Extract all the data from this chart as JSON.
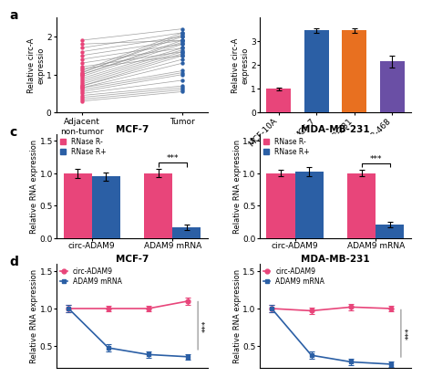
{
  "panel_a": {
    "adjacent_values": [
      0.3,
      0.4,
      0.45,
      0.5,
      0.55,
      0.6,
      0.65,
      0.65,
      0.7,
      0.7,
      0.75,
      0.8,
      0.85,
      0.9,
      0.95,
      1.0,
      1.0,
      1.05,
      1.05,
      1.1,
      1.15,
      1.2,
      1.3,
      1.4,
      1.5,
      1.6,
      1.7,
      1.8,
      1.9,
      0.35
    ],
    "tumor_values": [
      0.55,
      0.65,
      0.7,
      0.85,
      1.0,
      1.05,
      1.1,
      1.3,
      1.4,
      1.5,
      1.55,
      1.6,
      1.65,
      1.7,
      1.8,
      1.85,
      1.9,
      2.0,
      2.05,
      2.1,
      1.5,
      1.6,
      1.7,
      1.8,
      1.9,
      2.0,
      2.1,
      1.9,
      2.2,
      0.6
    ],
    "xlabel_left": "Adjacent\nnon-tumor",
    "xlabel_right": "Tumor",
    "ylabel": "Relative circ-A\nexpressio",
    "ylim": [
      0,
      2.5
    ],
    "yticks": [
      0,
      1,
      2
    ],
    "dot_color_left": "#E8457A",
    "dot_color_right": "#2B5FA5",
    "line_color": "#888888"
  },
  "panel_b": {
    "categories": [
      "MCF-10A",
      "MCF-7",
      "MDA-MB-231",
      "MDA-MB-468"
    ],
    "values": [
      1.0,
      3.45,
      3.45,
      2.15
    ],
    "errors": [
      0.05,
      0.1,
      0.1,
      0.25
    ],
    "colors": [
      "#E8457A",
      "#2B5FA5",
      "#E87020",
      "#6A4FA5"
    ],
    "ylabel": "Relative circ-A\nexpressio",
    "ylim": [
      0,
      4.0
    ],
    "yticks": [
      0,
      1,
      2,
      3
    ]
  },
  "panel_c_mcf7": {
    "title": "MCF-7",
    "groups": [
      "circ-ADAM9",
      "ADAM9 mRNA"
    ],
    "rnase_minus": [
      1.0,
      1.0
    ],
    "rnase_plus": [
      0.95,
      0.17
    ],
    "rnase_minus_err": [
      0.07,
      0.06
    ],
    "rnase_plus_err": [
      0.06,
      0.04
    ],
    "color_minus": "#E8457A",
    "color_plus": "#2B5FA5",
    "ylabel": "Relative RNA expression",
    "ylim": [
      0,
      1.6
    ],
    "yticks": [
      0.0,
      0.5,
      1.0,
      1.5
    ],
    "significance": "***"
  },
  "panel_c_mda": {
    "title": "MDA-MB-231",
    "groups": [
      "circ-ADAM9",
      "ADAM9 mRNA"
    ],
    "rnase_minus": [
      1.0,
      1.0
    ],
    "rnase_plus": [
      1.03,
      0.21
    ],
    "rnase_minus_err": [
      0.05,
      0.05
    ],
    "rnase_plus_err": [
      0.07,
      0.04
    ],
    "color_minus": "#E8457A",
    "color_plus": "#2B5FA5",
    "ylabel": "Relative RNA expression",
    "ylim": [
      0,
      1.6
    ],
    "yticks": [
      0.0,
      0.5,
      1.0,
      1.5
    ],
    "significance": "***"
  },
  "panel_d_mcf7": {
    "title": "MCF-7",
    "xvalues": [
      0,
      1,
      2,
      3
    ],
    "circ_values": [
      1.0,
      1.0,
      1.0,
      1.1
    ],
    "mrna_values": [
      1.0,
      0.47,
      0.38,
      0.35
    ],
    "circ_err": [
      0.05,
      0.04,
      0.04,
      0.05
    ],
    "mrna_err": [
      0.05,
      0.05,
      0.04,
      0.04
    ],
    "circ_color": "#E8457A",
    "mrna_color": "#2B5FA5",
    "ylabel": "Relative RNA expression",
    "ylim": [
      0.2,
      1.6
    ],
    "yticks": [
      0.5,
      1.0,
      1.5
    ],
    "significance": "***"
  },
  "panel_d_mda": {
    "title": "MDA-MB-231",
    "xvalues": [
      0,
      1,
      2,
      3
    ],
    "circ_values": [
      1.0,
      0.97,
      1.02,
      1.0
    ],
    "mrna_values": [
      1.0,
      0.37,
      0.28,
      0.25
    ],
    "circ_err": [
      0.05,
      0.04,
      0.04,
      0.04
    ],
    "mrna_err": [
      0.05,
      0.05,
      0.04,
      0.04
    ],
    "circ_color": "#E8457A",
    "mrna_color": "#2B5FA5",
    "ylabel": "Relative RNA expression",
    "ylim": [
      0.2,
      1.6
    ],
    "yticks": [
      0.5,
      1.0,
      1.5
    ],
    "significance": "***"
  },
  "background_color": "#ffffff",
  "font_size": 6.5,
  "title_font_size": 7.5
}
